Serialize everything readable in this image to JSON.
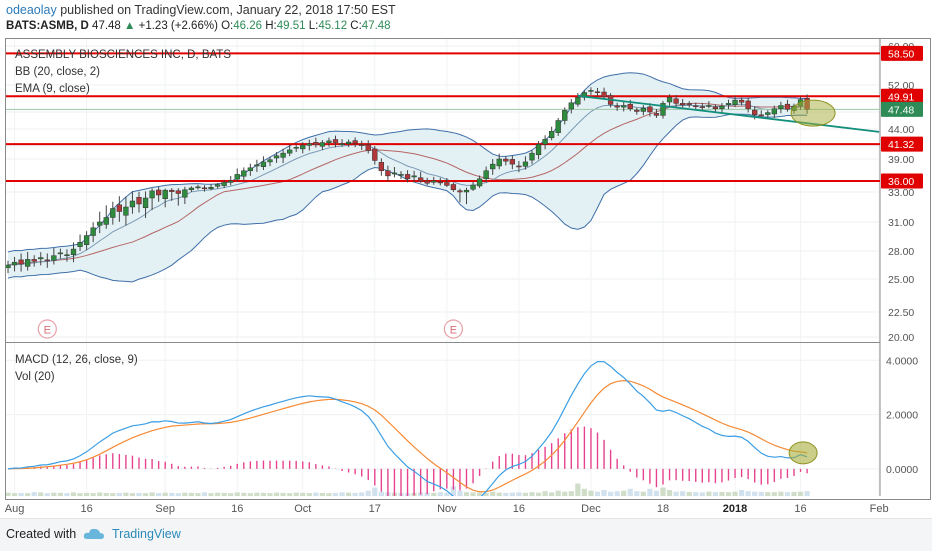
{
  "header": {
    "author": "odeaolay",
    "published_text": "published on TradingView.com, January 22, 2018 17:50 EST",
    "symbol_line": "BATS:ASMB, D",
    "last": "47.48",
    "change": "+1.23 (+2.66%)",
    "ohlc": {
      "o_label": "O:",
      "o": "46.26",
      "h_label": "H:",
      "h": "49.51",
      "l_label": "L:",
      "l": "45.12",
      "c_label": "C:",
      "c": "47.48"
    }
  },
  "legend": {
    "main": "ASSEMBLY BIOSCIENCES INC, D, BATS",
    "bb": "BB (20, close, 2)",
    "ema": "EMA (9, close)",
    "macd": "MACD (12, 26, close, 9)",
    "vol": "Vol (20)"
  },
  "footer": {
    "created": "Created with",
    "brand": "TradingView"
  },
  "colors": {
    "up": "#2e8b3e",
    "down": "#b0373a",
    "bb": "#3f6fa8",
    "bb_fill": "#e4f1f4",
    "ema": "#a94442",
    "hline": "#e00000",
    "trend": "#128f7b",
    "ellipse": "#a8ad3a",
    "macd": "#3b9ee5",
    "signal": "#f58a35",
    "hist": "#e6438f",
    "vol": "#c9dcea",
    "vol_up": "#c8d8bf"
  },
  "chart_data": [
    {
      "type": "candlestick",
      "title": "ASSEMBLY BIOSCIENCES INC, D, BATS",
      "ylim": [
        19.5,
        61
      ],
      "y_ticks": [
        "20.00",
        "22.50",
        "25.00",
        "28.00",
        "31.00",
        "33.00",
        "36.00",
        "39.00",
        "41.00",
        "44.00",
        "47.00",
        "52.00",
        "60.00"
      ],
      "x_ticks": [
        "Aug",
        "16",
        "Sep",
        "16",
        "Oct",
        "17",
        "Nov",
        "16",
        "Dec",
        "18",
        "2018",
        "16",
        "Feb"
      ],
      "price_labels": [
        {
          "value": 58.5,
          "text": "58.50",
          "color": "#e00000"
        },
        {
          "value": 49.91,
          "text": "49.91",
          "color": "#e00000"
        },
        {
          "value": 47.48,
          "text": "47.48",
          "color": "#2e8b57"
        },
        {
          "value": 41.32,
          "text": "41.32",
          "color": "#e00000"
        },
        {
          "value": 36.0,
          "text": "36.00",
          "color": "#e00000"
        }
      ],
      "horizontal_lines": [
        58.5,
        49.91,
        41.32,
        36.0
      ],
      "trendline": {
        "from": [
          "2017-11-29",
          50.0
        ],
        "to": [
          "2018-02-01",
          43.5
        ]
      },
      "highlight_ellipse": {
        "date": "2018-01-17",
        "value": 46.8
      },
      "earnings_markers": [
        {
          "date": "2017-08-08",
          "label": "E"
        },
        {
          "date": "2017-11-02",
          "label": "E"
        }
      ],
      "close": [
        26.5,
        26.8,
        26.6,
        27.1,
        26.9,
        27.3,
        27.0,
        27.5,
        27.8,
        27.6,
        28.2,
        28.9,
        29.6,
        30.4,
        31.0,
        31.3,
        31.9,
        31.7,
        32.0,
        32.4,
        32.2,
        32.6,
        33.3,
        32.8,
        33.5,
        33.1,
        32.9,
        33.6,
        34.1,
        34.4,
        33.9,
        34.3,
        35.0,
        35.6,
        36.0,
        36.9,
        37.4,
        37.8,
        38.2,
        38.6,
        38.9,
        39.5,
        39.9,
        40.4,
        40.8,
        41.1,
        41.4,
        41.2,
        41.6,
        41.9,
        41.6,
        41.4,
        41.7,
        41.5,
        41.2,
        40.3,
        38.8,
        37.4,
        36.7,
        37.1,
        36.9,
        36.3,
        36.7,
        36.0,
        35.4,
        36.0,
        35.6,
        34.8,
        33.6,
        33.0,
        33.5,
        34.9,
        36.3,
        37.4,
        38.3,
        39.0,
        38.7,
        38.3,
        38.0,
        38.6,
        39.9,
        41.3,
        42.2,
        43.6,
        45.5,
        47.3,
        48.7,
        49.7,
        50.6,
        51.0,
        50.7,
        49.8,
        48.4,
        47.9,
        48.2,
        47.6,
        47.1,
        47.7,
        47.0,
        46.4,
        48.6,
        49.7,
        48.6,
        48.3,
        48.4,
        48.0,
        47.9,
        48.2,
        47.6,
        48.1,
        48.6,
        49.2,
        48.8,
        47.6,
        46.5,
        46.3,
        46.9,
        47.6,
        48.2,
        47.5,
        48.1,
        49.3,
        47.48
      ],
      "volume": [
        0.14,
        0.12,
        0.13,
        0.12,
        0.16,
        0.15,
        0.12,
        0.14,
        0.13,
        0.12,
        0.15,
        0.12,
        0.13,
        0.12,
        0.15,
        0.13,
        0.12,
        0.13,
        0.14,
        0.12,
        0.13,
        0.12,
        0.15,
        0.12,
        0.14,
        0.13,
        0.12,
        0.14,
        0.13,
        0.12,
        0.15,
        0.12,
        0.14,
        0.13,
        0.12,
        0.15,
        0.13,
        0.12,
        0.14,
        0.13,
        0.12,
        0.14,
        0.13,
        0.12,
        0.14,
        0.13,
        0.12,
        0.14,
        0.13,
        0.12,
        0.13,
        0.15,
        0.14,
        0.13,
        0.15,
        0.22,
        0.35,
        0.18,
        0.15,
        0.14,
        0.13,
        0.12,
        0.13,
        0.15,
        0.14,
        0.13,
        0.16,
        0.14,
        0.4,
        0.22,
        0.16,
        0.15,
        0.14,
        0.13,
        0.18,
        0.14,
        0.13,
        0.14,
        0.15,
        0.13,
        0.16,
        0.14,
        0.2,
        0.15,
        0.22,
        0.18,
        0.2,
        0.52,
        0.3,
        0.22,
        0.18,
        0.25,
        0.18,
        0.2,
        0.22,
        0.3,
        0.2,
        0.18,
        0.3,
        0.22,
        0.35,
        0.25,
        0.18,
        0.2,
        0.17,
        0.16,
        0.15,
        0.18,
        0.16,
        0.17,
        0.16,
        0.18,
        0.25,
        0.2,
        0.18,
        0.17,
        0.16,
        0.16,
        0.18,
        0.16,
        0.17,
        0.18,
        0.2
      ]
    },
    {
      "type": "line",
      "title": "MACD (12, 26, close, 9)",
      "ylim": [
        -1.0,
        4.6
      ],
      "y_ticks": [
        "0.0000",
        "2.0000",
        "4.0000"
      ],
      "series": [
        {
          "name": "MACD",
          "values": "derived from close"
        },
        {
          "name": "Signal",
          "values": "derived from close"
        },
        {
          "name": "Histogram",
          "values": "derived from close"
        }
      ]
    }
  ]
}
